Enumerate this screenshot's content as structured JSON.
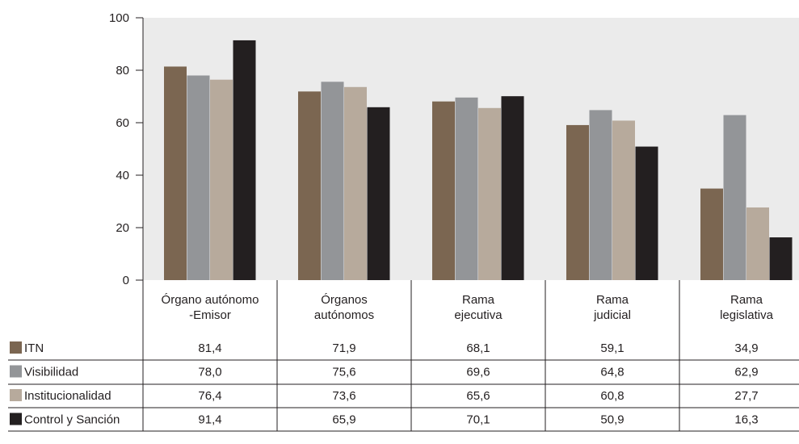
{
  "chart_data": {
    "type": "bar",
    "categories": [
      [
        "Órgano autónomo",
        "-Emisor"
      ],
      [
        "Órganos",
        "autónomos"
      ],
      [
        "Rama",
        "ejecutiva"
      ],
      [
        "Rama",
        "judicial"
      ],
      [
        "Rama",
        "legislativa"
      ]
    ],
    "series": [
      {
        "name": "ITN",
        "color": "#7b6651",
        "values": [
          81.4,
          71.9,
          68.1,
          59.1,
          34.9
        ],
        "labels": [
          "81,4",
          "71,9",
          "68,1",
          "59,1",
          "34,9"
        ]
      },
      {
        "name": "Visibilidad",
        "color": "#939598",
        "values": [
          78.0,
          75.6,
          69.6,
          64.8,
          62.9
        ],
        "labels": [
          "78,0",
          "75,6",
          "69,6",
          "64,8",
          "62,9"
        ]
      },
      {
        "name": "Institucionalidad",
        "color": "#b7aa9c",
        "values": [
          76.4,
          73.6,
          65.6,
          60.8,
          27.7
        ],
        "labels": [
          "76,4",
          "73,6",
          "65,6",
          "60,8",
          "27,7"
        ]
      },
      {
        "name": "Control y Sanción",
        "color": "#231f20",
        "values": [
          91.4,
          65.9,
          70.1,
          50.9,
          16.3
        ],
        "labels": [
          "91,4",
          "65,9",
          "70,1",
          "50,9",
          "16,3"
        ]
      }
    ],
    "ylim": [
      0,
      100
    ],
    "yticks": [
      "0",
      "20",
      "40",
      "60",
      "80",
      "100"
    ],
    "plot_background": "#ebebeb",
    "grid": false,
    "legend": "data-table-left"
  }
}
